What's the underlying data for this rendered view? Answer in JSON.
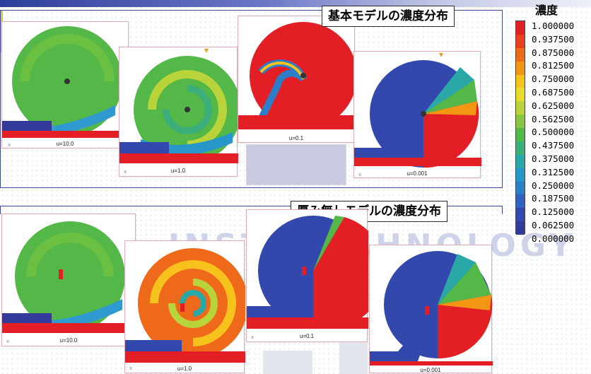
{
  "group_titles": {
    "top": "基本モデルの濃度分布",
    "bottom": "厚み無しモデルの濃度分布"
  },
  "legend": {
    "title": "濃度",
    "ticks": [
      "1.000000",
      "0.937500",
      "0.875000",
      "0.812500",
      "0.750000",
      "0.687500",
      "0.625000",
      "0.562500",
      "0.500000",
      "0.437500",
      "0.375000",
      "0.312500",
      "0.250000",
      "0.187500",
      "0.125000",
      "0.062500",
      "0.000000"
    ],
    "colors": [
      "#e31e24",
      "#e8401e",
      "#ee6a1a",
      "#f39616",
      "#f8c21c",
      "#e8dc2a",
      "#b9d43a",
      "#88c640",
      "#54b848",
      "#3cae7a",
      "#2aa8a8",
      "#2796c8",
      "#2c7ec8",
      "#2f63bf",
      "#3248ad",
      "#343a9a"
    ]
  },
  "watermark": "INSTI  TECHNOLOGY",
  "axis_letter": "x",
  "panels": [
    {
      "label": "u=10.0",
      "color_scheme": "green"
    },
    {
      "label": "u=1.0",
      "color_scheme": "green-swirl"
    },
    {
      "label": "u=0.1",
      "color_scheme": "red"
    },
    {
      "label": "u=0.001",
      "color_scheme": "blue-red"
    },
    {
      "label": "u=10.0",
      "color_scheme": "green"
    },
    {
      "label": "u=1.0",
      "color_scheme": "orange-swirl"
    },
    {
      "label": "u=0.1",
      "color_scheme": "blue-red"
    },
    {
      "label": "u=0.001",
      "color_scheme": "blue-red"
    }
  ],
  "colors": {
    "frame": "#3b4aa0",
    "panel_border": "#e4aab4",
    "red": "#e31e24",
    "blue": "#3542a5",
    "green": "#54b848",
    "orange": "#ee7a1e"
  }
}
